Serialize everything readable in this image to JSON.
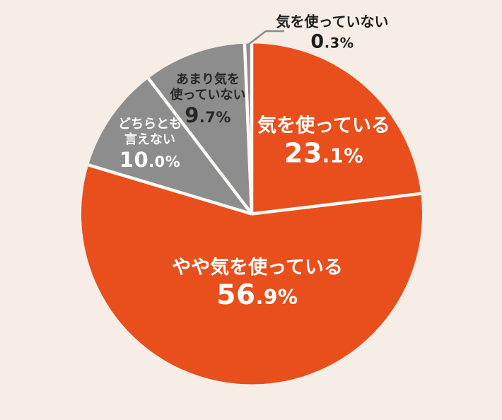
{
  "background_color": "#f7ede7",
  "chart_data": {
    "type": "pie",
    "title": "",
    "start_angle_deg": 0,
    "direction": "clockwise",
    "total": 100,
    "separator_color": "#fcfaf7",
    "leader_line_color": "#8a8a8a",
    "slices": [
      {
        "label": "気を使っている",
        "label_lines": [
          "気を使っている"
        ],
        "value": 23.1,
        "value_main": "23",
        "value_frac": ".1",
        "unit": "%",
        "color": "#e84f1c",
        "text_color": "#ffffff",
        "label_position": "inside"
      },
      {
        "label": "やや気を使っている",
        "label_lines": [
          "やや気を使っている"
        ],
        "value": 56.9,
        "value_main": "56",
        "value_frac": ".9",
        "unit": "%",
        "color": "#e84f1c",
        "text_color": "#ffffff",
        "label_position": "inside"
      },
      {
        "label": "どちらとも言えない",
        "label_lines": [
          "どちらとも",
          "言えない"
        ],
        "value": 10.0,
        "value_main": "10",
        "value_frac": ".0",
        "unit": "%",
        "color": "#8d8d8d",
        "text_color": "#ffffff",
        "label_position": "inside"
      },
      {
        "label": "あまり気を使っていない",
        "label_lines": [
          "あまり気を",
          "使っていない"
        ],
        "value": 9.7,
        "value_main": "9",
        "value_frac": ".7",
        "unit": "%",
        "color": "#8d8d8d",
        "text_color": "#272727",
        "label_position": "inside"
      },
      {
        "label": "気を使っていない",
        "label_lines": [
          "気を使っていない"
        ],
        "value": 0.3,
        "value_main": "0",
        "value_frac": ".3",
        "unit": "%",
        "color": "#8d8d8d",
        "text_color": "#1c1c1c",
        "label_position": "outside-top"
      }
    ]
  }
}
